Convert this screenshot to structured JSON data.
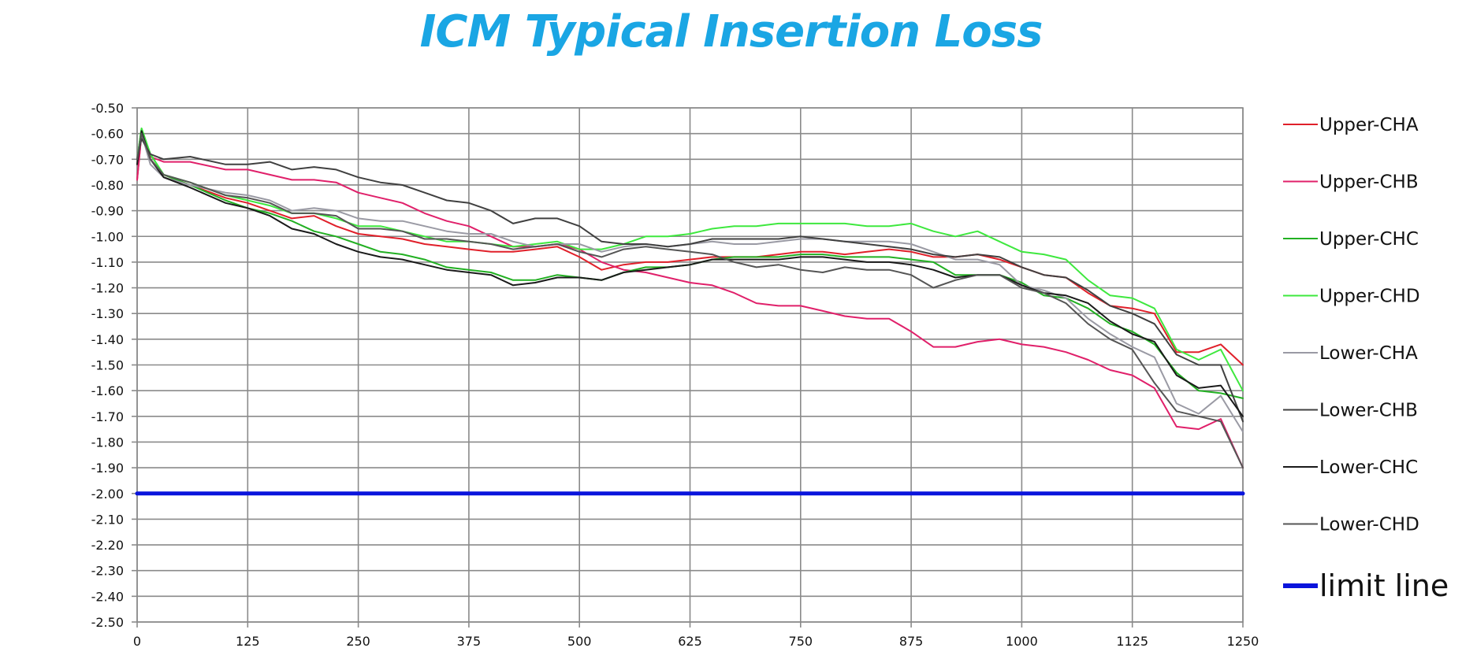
{
  "chart_data": {
    "type": "line",
    "title": "ICM Typical Insertion Loss",
    "title_color": "#1aa6e4",
    "xlabel": "",
    "ylabel": "",
    "xlim": [
      0,
      1250
    ],
    "ylim": [
      -2.5,
      -0.5
    ],
    "x_ticks": [
      "0",
      "125",
      "250",
      "375",
      "500",
      "625",
      "750",
      "875",
      "1000",
      "1125",
      "1250"
    ],
    "y_ticks": [
      "-0.50",
      "-0.60",
      "-0.70",
      "-0.80",
      "-0.90",
      "-1.00",
      "-1.10",
      "-1.20",
      "-1.30",
      "-1.40",
      "-1.50",
      "-1.60",
      "-1.70",
      "-1.80",
      "-1.90",
      "-2.00",
      "-2.10",
      "-2.20",
      "-2.30",
      "-2.40",
      "-2.50"
    ],
    "grid": true,
    "legend_position": "right",
    "series": [
      {
        "name": "Upper-CHA",
        "color": "#e0202a",
        "x": [
          0,
          5,
          15,
          30,
          60,
          100,
          125,
          150,
          175,
          200,
          225,
          250,
          275,
          300,
          325,
          350,
          375,
          400,
          425,
          450,
          475,
          500,
          525,
          550,
          575,
          600,
          625,
          650,
          675,
          700,
          725,
          750,
          775,
          800,
          825,
          850,
          875,
          900,
          925,
          950,
          975,
          1000,
          1025,
          1050,
          1075,
          1100,
          1125,
          1150,
          1175,
          1200,
          1225,
          1250
        ],
        "values": [
          -0.78,
          -0.6,
          -0.7,
          -0.76,
          -0.8,
          -0.85,
          -0.87,
          -0.9,
          -0.93,
          -0.92,
          -0.96,
          -0.99,
          -1.0,
          -1.01,
          -1.03,
          -1.04,
          -1.05,
          -1.06,
          -1.06,
          -1.05,
          -1.04,
          -1.08,
          -1.13,
          -1.11,
          -1.1,
          -1.1,
          -1.09,
          -1.08,
          -1.08,
          -1.08,
          -1.07,
          -1.06,
          -1.06,
          -1.07,
          -1.06,
          -1.05,
          -1.06,
          -1.08,
          -1.08,
          -1.07,
          -1.09,
          -1.12,
          -1.15,
          -1.16,
          -1.22,
          -1.27,
          -1.28,
          -1.3,
          -1.45,
          -1.45,
          -1.42,
          -1.5
        ]
      },
      {
        "name": "Upper-CHB",
        "color": "#e0206a",
        "x": [
          0,
          5,
          15,
          30,
          60,
          100,
          125,
          150,
          175,
          200,
          225,
          250,
          275,
          300,
          325,
          350,
          375,
          400,
          425,
          450,
          475,
          500,
          525,
          550,
          575,
          600,
          625,
          650,
          675,
          700,
          725,
          750,
          775,
          800,
          825,
          850,
          875,
          900,
          925,
          950,
          975,
          1000,
          1025,
          1050,
          1075,
          1100,
          1125,
          1150,
          1175,
          1200,
          1225,
          1250
        ],
        "values": [
          -0.78,
          -0.6,
          -0.69,
          -0.71,
          -0.71,
          -0.74,
          -0.74,
          -0.76,
          -0.78,
          -0.78,
          -0.79,
          -0.83,
          -0.85,
          -0.87,
          -0.91,
          -0.94,
          -0.96,
          -1.0,
          -1.04,
          -1.04,
          -1.03,
          -1.05,
          -1.1,
          -1.13,
          -1.14,
          -1.16,
          -1.18,
          -1.19,
          -1.22,
          -1.26,
          -1.27,
          -1.27,
          -1.29,
          -1.31,
          -1.32,
          -1.32,
          -1.37,
          -1.43,
          -1.43,
          -1.41,
          -1.4,
          -1.42,
          -1.43,
          -1.45,
          -1.48,
          -1.52,
          -1.54,
          -1.59,
          -1.74,
          -1.75,
          -1.71,
          -1.9
        ]
      },
      {
        "name": "Upper-CHC",
        "color": "#22b022",
        "x": [
          0,
          5,
          15,
          30,
          60,
          100,
          125,
          150,
          175,
          200,
          225,
          250,
          275,
          300,
          325,
          350,
          375,
          400,
          425,
          450,
          475,
          500,
          525,
          550,
          575,
          600,
          625,
          650,
          675,
          700,
          725,
          750,
          775,
          800,
          825,
          850,
          875,
          900,
          925,
          950,
          975,
          1000,
          1025,
          1050,
          1075,
          1100,
          1125,
          1150,
          1175,
          1200,
          1225,
          1250
        ],
        "values": [
          -0.7,
          -0.58,
          -0.68,
          -0.76,
          -0.8,
          -0.86,
          -0.89,
          -0.91,
          -0.94,
          -0.98,
          -1.0,
          -1.03,
          -1.06,
          -1.07,
          -1.09,
          -1.12,
          -1.13,
          -1.14,
          -1.17,
          -1.17,
          -1.15,
          -1.16,
          -1.17,
          -1.14,
          -1.12,
          -1.12,
          -1.11,
          -1.09,
          -1.08,
          -1.08,
          -1.08,
          -1.07,
          -1.07,
          -1.08,
          -1.08,
          -1.08,
          -1.09,
          -1.1,
          -1.15,
          -1.15,
          -1.15,
          -1.18,
          -1.23,
          -1.24,
          -1.28,
          -1.34,
          -1.37,
          -1.42,
          -1.53,
          -1.6,
          -1.61,
          -1.63
        ]
      },
      {
        "name": "Upper-CHD",
        "color": "#3ee83e",
        "x": [
          0,
          5,
          15,
          30,
          60,
          100,
          125,
          150,
          175,
          200,
          225,
          250,
          275,
          300,
          325,
          350,
          375,
          400,
          425,
          450,
          475,
          500,
          525,
          550,
          575,
          600,
          625,
          650,
          675,
          700,
          725,
          750,
          775,
          800,
          825,
          850,
          875,
          900,
          925,
          950,
          975,
          1000,
          1025,
          1050,
          1075,
          1100,
          1125,
          1150,
          1175,
          1200,
          1225,
          1250
        ],
        "values": [
          -0.7,
          -0.58,
          -0.68,
          -0.76,
          -0.79,
          -0.84,
          -0.86,
          -0.88,
          -0.91,
          -0.91,
          -0.93,
          -0.96,
          -0.96,
          -0.98,
          -1.0,
          -1.02,
          -1.02,
          -1.03,
          -1.04,
          -1.03,
          -1.02,
          -1.05,
          -1.05,
          -1.03,
          -1.0,
          -1.0,
          -0.99,
          -0.97,
          -0.96,
          -0.96,
          -0.95,
          -0.95,
          -0.95,
          -0.95,
          -0.96,
          -0.96,
          -0.95,
          -0.98,
          -1.0,
          -0.98,
          -1.02,
          -1.06,
          -1.07,
          -1.09,
          -1.17,
          -1.23,
          -1.24,
          -1.28,
          -1.44,
          -1.48,
          -1.44,
          -1.6
        ]
      },
      {
        "name": "Lower-CHA",
        "color": "#9a9aa4",
        "x": [
          0,
          5,
          15,
          30,
          60,
          100,
          125,
          150,
          175,
          200,
          225,
          250,
          275,
          300,
          325,
          350,
          375,
          400,
          425,
          450,
          475,
          500,
          525,
          550,
          575,
          600,
          625,
          650,
          675,
          700,
          725,
          750,
          775,
          800,
          825,
          850,
          875,
          900,
          925,
          950,
          975,
          1000,
          1025,
          1050,
          1075,
          1100,
          1125,
          1150,
          1175,
          1200,
          1225,
          1250
        ],
        "values": [
          -0.7,
          -0.6,
          -0.72,
          -0.77,
          -0.8,
          -0.83,
          -0.84,
          -0.86,
          -0.9,
          -0.89,
          -0.9,
          -0.93,
          -0.94,
          -0.94,
          -0.96,
          -0.98,
          -0.99,
          -0.99,
          -1.02,
          -1.04,
          -1.03,
          -1.03,
          -1.06,
          -1.04,
          -1.03,
          -1.04,
          -1.03,
          -1.02,
          -1.03,
          -1.03,
          -1.02,
          -1.01,
          -1.01,
          -1.02,
          -1.02,
          -1.02,
          -1.03,
          -1.06,
          -1.09,
          -1.09,
          -1.11,
          -1.19,
          -1.21,
          -1.24,
          -1.32,
          -1.38,
          -1.43,
          -1.47,
          -1.65,
          -1.69,
          -1.62,
          -1.76
        ]
      },
      {
        "name": "Lower-CHB",
        "color": "#404040",
        "x": [
          0,
          5,
          15,
          30,
          60,
          100,
          125,
          150,
          175,
          200,
          225,
          250,
          275,
          300,
          325,
          350,
          375,
          400,
          425,
          450,
          475,
          500,
          525,
          550,
          575,
          600,
          625,
          650,
          675,
          700,
          725,
          750,
          775,
          800,
          825,
          850,
          875,
          900,
          925,
          950,
          975,
          1000,
          1025,
          1050,
          1075,
          1100,
          1125,
          1150,
          1175,
          1200,
          1225,
          1250
        ],
        "values": [
          -0.7,
          -0.62,
          -0.68,
          -0.7,
          -0.69,
          -0.72,
          -0.72,
          -0.71,
          -0.74,
          -0.73,
          -0.74,
          -0.77,
          -0.79,
          -0.8,
          -0.83,
          -0.86,
          -0.87,
          -0.9,
          -0.95,
          -0.93,
          -0.93,
          -0.96,
          -1.02,
          -1.03,
          -1.03,
          -1.04,
          -1.03,
          -1.01,
          -1.01,
          -1.01,
          -1.01,
          -1.0,
          -1.01,
          -1.02,
          -1.03,
          -1.04,
          -1.05,
          -1.07,
          -1.08,
          -1.07,
          -1.08,
          -1.12,
          -1.15,
          -1.16,
          -1.21,
          -1.27,
          -1.3,
          -1.34,
          -1.46,
          -1.5,
          -1.5,
          -1.72
        ]
      },
      {
        "name": "Lower-CHC",
        "color": "#1a1a1a",
        "x": [
          0,
          5,
          15,
          30,
          60,
          100,
          125,
          150,
          175,
          200,
          225,
          250,
          275,
          300,
          325,
          350,
          375,
          400,
          425,
          450,
          475,
          500,
          525,
          550,
          575,
          600,
          625,
          650,
          675,
          700,
          725,
          750,
          775,
          800,
          825,
          850,
          875,
          900,
          925,
          950,
          975,
          1000,
          1025,
          1050,
          1075,
          1100,
          1125,
          1150,
          1175,
          1200,
          1225,
          1250
        ],
        "values": [
          -0.72,
          -0.59,
          -0.7,
          -0.77,
          -0.81,
          -0.87,
          -0.89,
          -0.92,
          -0.97,
          -0.99,
          -1.03,
          -1.06,
          -1.08,
          -1.09,
          -1.11,
          -1.13,
          -1.14,
          -1.15,
          -1.19,
          -1.18,
          -1.16,
          -1.16,
          -1.17,
          -1.14,
          -1.13,
          -1.12,
          -1.11,
          -1.09,
          -1.09,
          -1.09,
          -1.09,
          -1.08,
          -1.08,
          -1.09,
          -1.1,
          -1.1,
          -1.11,
          -1.13,
          -1.16,
          -1.15,
          -1.15,
          -1.19,
          -1.22,
          -1.23,
          -1.26,
          -1.33,
          -1.38,
          -1.41,
          -1.54,
          -1.59,
          -1.58,
          -1.7
        ]
      },
      {
        "name": "Lower-CHD",
        "color": "#555555",
        "x": [
          0,
          5,
          15,
          30,
          60,
          100,
          125,
          150,
          175,
          200,
          225,
          250,
          275,
          300,
          325,
          350,
          375,
          400,
          425,
          450,
          475,
          500,
          525,
          550,
          575,
          600,
          625,
          650,
          675,
          700,
          725,
          750,
          775,
          800,
          825,
          850,
          875,
          900,
          925,
          950,
          975,
          1000,
          1025,
          1050,
          1075,
          1100,
          1125,
          1150,
          1175,
          1200,
          1225,
          1250
        ],
        "values": [
          -0.7,
          -0.6,
          -0.7,
          -0.76,
          -0.79,
          -0.84,
          -0.85,
          -0.87,
          -0.91,
          -0.91,
          -0.92,
          -0.97,
          -0.97,
          -0.98,
          -1.01,
          -1.01,
          -1.02,
          -1.03,
          -1.05,
          -1.04,
          -1.03,
          -1.06,
          -1.08,
          -1.05,
          -1.04,
          -1.05,
          -1.06,
          -1.07,
          -1.1,
          -1.12,
          -1.11,
          -1.13,
          -1.14,
          -1.12,
          -1.13,
          -1.13,
          -1.15,
          -1.2,
          -1.17,
          -1.15,
          -1.15,
          -1.2,
          -1.22,
          -1.26,
          -1.34,
          -1.4,
          -1.44,
          -1.57,
          -1.68,
          -1.7,
          -1.72,
          -1.9
        ]
      },
      {
        "name": "limit line",
        "color": "#0a14dc",
        "x": [
          0,
          1250
        ],
        "values": [
          -2.0,
          -2.0
        ]
      }
    ]
  }
}
